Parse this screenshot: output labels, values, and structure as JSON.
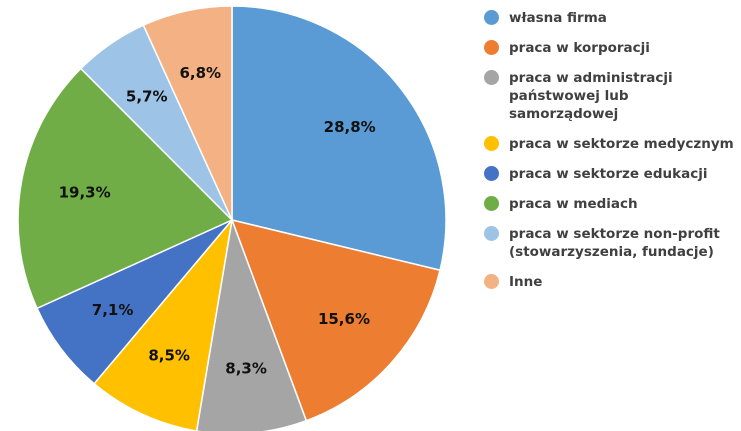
{
  "chart_data": {
    "type": "pie",
    "categories": [
      "własna firma",
      "praca w korporacji",
      "praca w administracji\npaństwowej lub samorządowej",
      "praca w sektorze medycznym",
      "praca w sektorze edukacji",
      "praca w mediach",
      "praca w sektorze non-profit\n(stowarzyszenia, fundacje)",
      "Inne"
    ],
    "values": [
      28.8,
      15.6,
      8.3,
      8.5,
      7.1,
      19.3,
      5.7,
      6.8
    ],
    "value_labels": [
      "28,8%",
      "15,6%",
      "8,3%",
      "8,5%",
      "7,1%",
      "19,3%",
      "5,7%",
      "6,8%"
    ],
    "colors": [
      "#5b9bd5",
      "#ed7d31",
      "#a5a5a5",
      "#ffc000",
      "#4472c4",
      "#70ad47",
      "#9dc3e6",
      "#f4b183"
    ],
    "legend": "right"
  }
}
